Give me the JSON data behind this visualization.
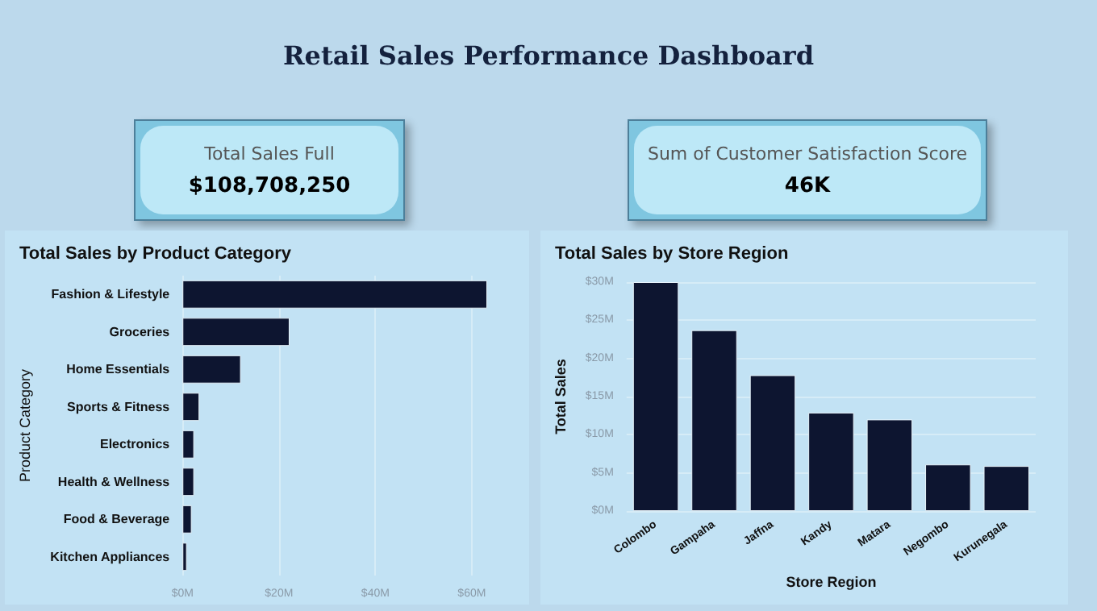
{
  "chart_data": [
    {
      "type": "other",
      "title": "Retail Sales Performance Dashboard"
    },
    {
      "type": "other",
      "title": "Total Sales Full",
      "annotations": [
        "$108,708,250"
      ]
    },
    {
      "type": "other",
      "title": "Sum of Customer Satisfaction Score",
      "annotations": [
        "46K"
      ]
    },
    {
      "type": "bar",
      "orientation": "horizontal",
      "title": "Total Sales by Product Category",
      "ylabel": "Product Category",
      "categories": [
        "Fashion & Lifestyle",
        "Groceries",
        "Home Essentials",
        "Sports & Fitness",
        "Electronics",
        "Health & Wellness",
        "Food & Beverage",
        "Kitchen Appliances"
      ],
      "values": [
        63.2,
        22.2,
        12.1,
        3.5,
        2.4,
        2.4,
        1.9,
        0.9
      ],
      "color": "#0d1530",
      "xlim": [
        0,
        63.2
      ],
      "xticks": [
        {
          "value": 0,
          "label": "$0M"
        },
        {
          "value": 20,
          "label": "$20M"
        },
        {
          "value": 40,
          "label": "$40M"
        },
        {
          "value": 60,
          "label": "$60M"
        }
      ],
      "grid": "x"
    },
    {
      "type": "bar",
      "title": "Total Sales by Store Region",
      "xlabel": "Store Region",
      "ylabel": "Total Sales",
      "categories": [
        "Colombo",
        "Gampaha",
        "Jaffna",
        "Kandy",
        "Matara",
        "Negombo",
        "Kurunegala"
      ],
      "values": [
        30.0,
        23.7,
        17.8,
        12.9,
        12.0,
        6.1,
        5.9
      ],
      "color": "#0d1530",
      "ylim": [
        0,
        30
      ],
      "yticks": [
        {
          "value": 0,
          "label": "$0M"
        },
        {
          "value": 5,
          "label": "$5M"
        },
        {
          "value": 10,
          "label": "$10M"
        },
        {
          "value": 15,
          "label": "$15M"
        },
        {
          "value": 20,
          "label": "$20M"
        },
        {
          "value": 25,
          "label": "$25M"
        },
        {
          "value": 30,
          "label": "$30M"
        }
      ],
      "grid": "y"
    }
  ]
}
